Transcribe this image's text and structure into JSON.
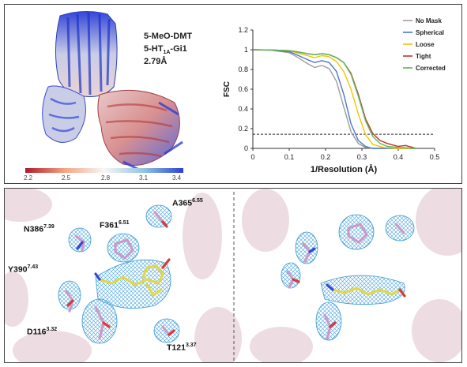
{
  "structure": {
    "ligand": "5-MeO-DMT",
    "receptor_prefix": "5-HT",
    "receptor_sub": "1A",
    "receptor_suffix": "-Gi1",
    "resolution": "2.79Å"
  },
  "colorbar": {
    "ticks": [
      "2.2",
      "2.5",
      "2.8",
      "3.1",
      "3.4"
    ],
    "colors": [
      "#b2182b",
      "#f4a582",
      "#f7f7f7",
      "#92c5de",
      "#2c3fd6"
    ]
  },
  "chart_data": {
    "type": "line",
    "title": "",
    "xlabel": "1/Resolution (Å)",
    "ylabel": "FSC",
    "xlim": [
      0,
      0.5
    ],
    "ylim": [
      0,
      1.2
    ],
    "xticks": [
      "0",
      "0.1",
      "0.2",
      "0.3",
      "0.4",
      "0.5"
    ],
    "yticks": [
      "0",
      "0.2",
      "0.4",
      "0.6",
      "0.8",
      "1",
      "1.2"
    ],
    "threshold": 0.143,
    "legend_position": "top-right",
    "series": [
      {
        "name": "No Mask",
        "color": "#9e9e9e",
        "x": [
          0,
          0.05,
          0.1,
          0.12,
          0.15,
          0.17,
          0.19,
          0.21,
          0.23,
          0.25,
          0.27,
          0.29,
          0.31,
          0.33,
          0.36,
          0.4,
          0.45
        ],
        "y": [
          1,
          0.995,
          0.97,
          0.93,
          0.86,
          0.82,
          0.84,
          0.81,
          0.68,
          0.42,
          0.17,
          0.05,
          0.01,
          0.0,
          0.0,
          0.0,
          0.0
        ]
      },
      {
        "name": "Spherical",
        "color": "#4a78c9",
        "x": [
          0,
          0.05,
          0.1,
          0.12,
          0.15,
          0.17,
          0.19,
          0.21,
          0.23,
          0.25,
          0.27,
          0.29,
          0.31,
          0.33,
          0.36,
          0.4,
          0.45
        ],
        "y": [
          1,
          0.995,
          0.98,
          0.95,
          0.9,
          0.87,
          0.89,
          0.87,
          0.78,
          0.55,
          0.25,
          0.08,
          0.02,
          0.0,
          0.0,
          0.0,
          0.0
        ]
      },
      {
        "name": "Loose",
        "color": "#f2c500",
        "x": [
          0,
          0.05,
          0.1,
          0.12,
          0.15,
          0.17,
          0.19,
          0.21,
          0.23,
          0.25,
          0.27,
          0.29,
          0.31,
          0.33,
          0.36,
          0.4,
          0.45
        ],
        "y": [
          1,
          0.997,
          0.99,
          0.97,
          0.94,
          0.92,
          0.94,
          0.93,
          0.88,
          0.78,
          0.6,
          0.35,
          0.14,
          0.04,
          0.01,
          0.0,
          0.0
        ]
      },
      {
        "name": "Tight",
        "color": "#c4302b",
        "x": [
          0,
          0.05,
          0.1,
          0.12,
          0.15,
          0.17,
          0.19,
          0.21,
          0.23,
          0.25,
          0.27,
          0.29,
          0.31,
          0.33,
          0.35,
          0.37,
          0.4,
          0.42,
          0.45
        ],
        "y": [
          1,
          0.998,
          0.99,
          0.98,
          0.96,
          0.95,
          0.96,
          0.95,
          0.92,
          0.87,
          0.76,
          0.55,
          0.3,
          0.15,
          0.08,
          0.05,
          0.02,
          0.03,
          0.0
        ]
      },
      {
        "name": "Corrected",
        "color": "#5cb85c",
        "x": [
          0,
          0.05,
          0.1,
          0.12,
          0.15,
          0.17,
          0.19,
          0.21,
          0.23,
          0.25,
          0.27,
          0.29,
          0.31,
          0.33,
          0.35,
          0.37,
          0.4,
          0.45
        ],
        "y": [
          1,
          0.998,
          0.99,
          0.98,
          0.96,
          0.95,
          0.96,
          0.95,
          0.92,
          0.87,
          0.75,
          0.53,
          0.28,
          0.12,
          0.05,
          0.02,
          0.01,
          0.0
        ]
      }
    ]
  },
  "residues_left": [
    {
      "name": "N386",
      "sup": "7.39"
    },
    {
      "name": "F361",
      "sup": "6.51"
    },
    {
      "name": "A365",
      "sup": "6.55"
    },
    {
      "name": "Y390",
      "sup": "7.43"
    },
    {
      "name": "D116",
      "sup": "3.32"
    },
    {
      "name": "T121",
      "sup": "3.37"
    }
  ]
}
